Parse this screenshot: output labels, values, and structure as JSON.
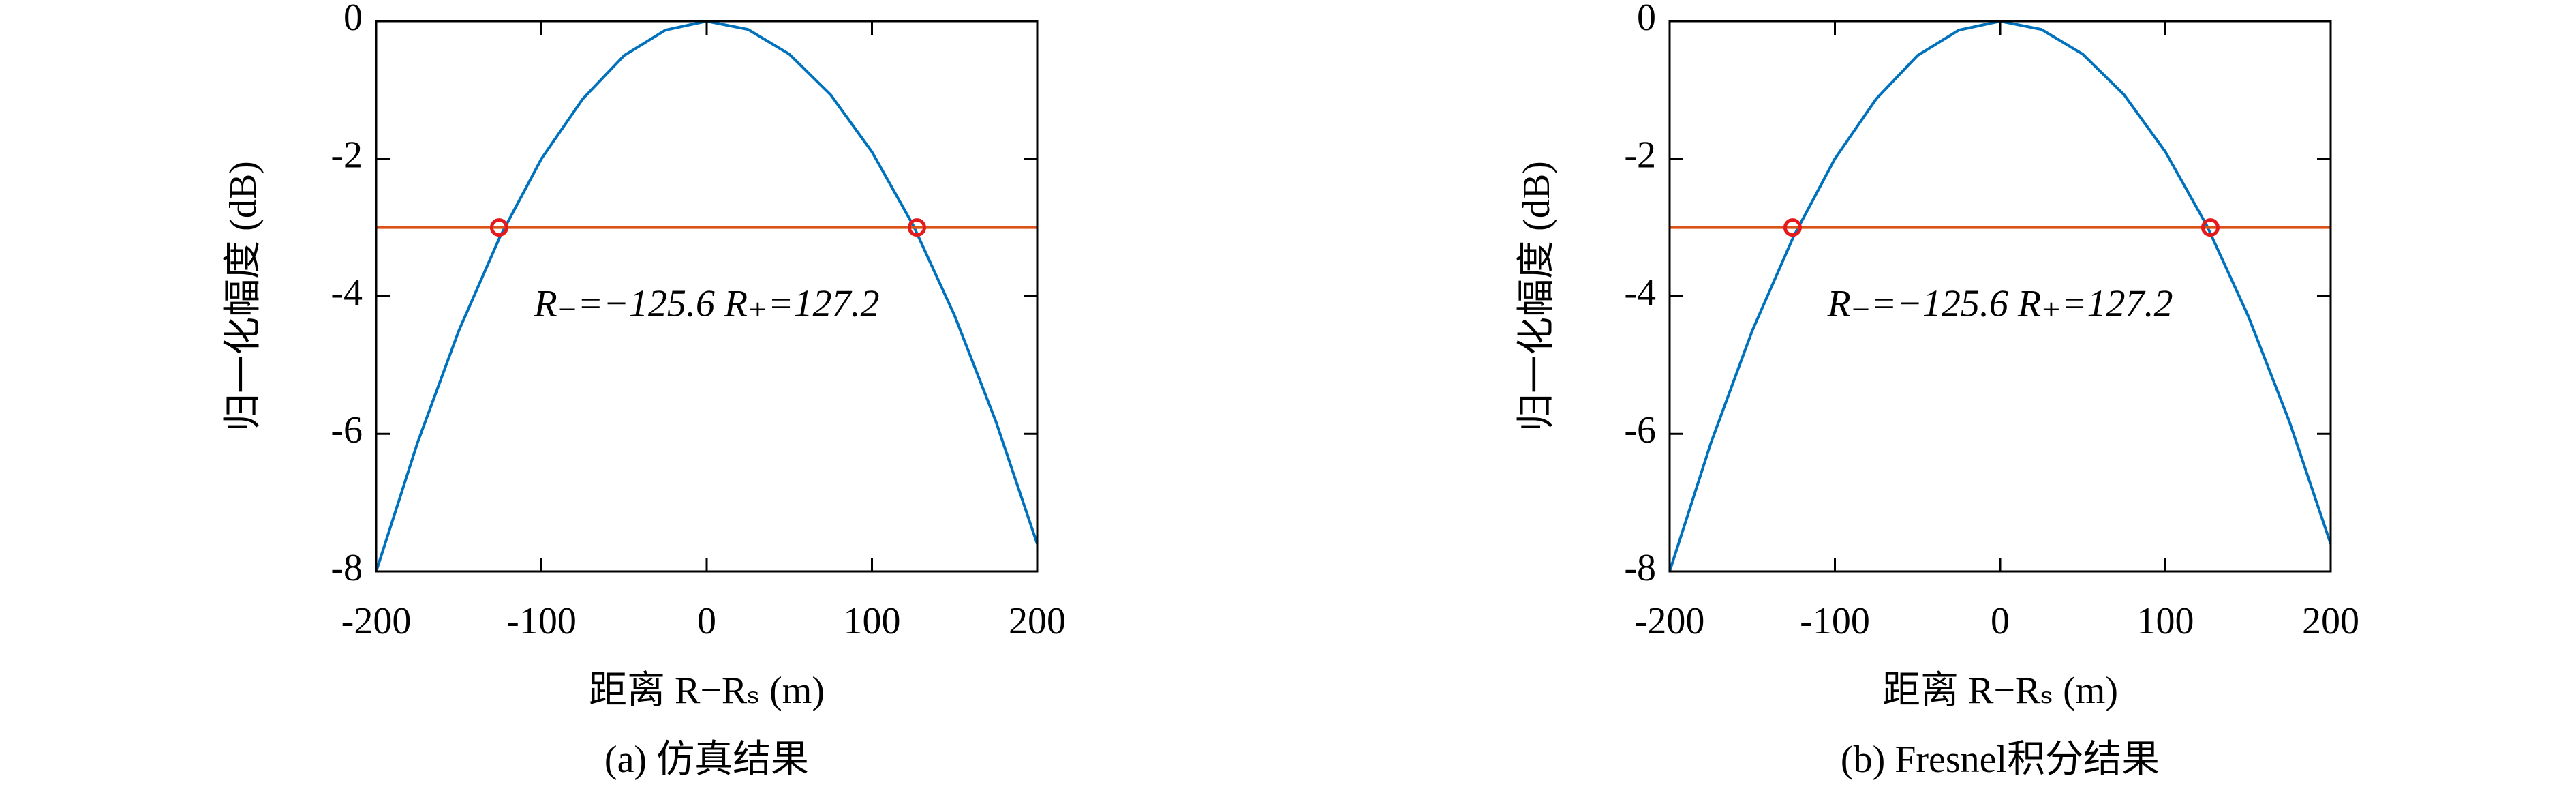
{
  "chart_data": [
    {
      "type": "line",
      "title": "(a) 仿真结果",
      "xlabel": "距离 R−Rₛ (m)",
      "ylabel": "归一化幅度 (dB)",
      "annotation": "R₋=−125.6 R₊=127.2",
      "xlim": [
        -200,
        200
      ],
      "ylim": [
        -8,
        0
      ],
      "xticks": [
        -200,
        -100,
        0,
        100,
        200
      ],
      "yticks": [
        -8,
        -6,
        -4,
        -2,
        0
      ],
      "series": [
        {
          "color": "#0072bd",
          "style": "line",
          "x": [
            -200,
            -175,
            -150,
            -125,
            -100,
            -75,
            -50,
            -25,
            0,
            25,
            50,
            75,
            100,
            125,
            150,
            175,
            200
          ],
          "values": [
            -8,
            -6.13,
            -4.5,
            -3.13,
            -2.0,
            -1.13,
            -0.5,
            -0.13,
            0,
            -0.12,
            -0.48,
            -1.07,
            -1.9,
            -2.97,
            -4.28,
            -5.82,
            -7.6
          ]
        },
        {
          "color": "#d95319",
          "style": "line",
          "x": [
            -200,
            200
          ],
          "values": [
            -3,
            -3
          ]
        },
        {
          "color": "#e41a1c",
          "style": "marker",
          "x": [
            -125.6,
            127.2
          ],
          "values": [
            -3,
            -3
          ]
        }
      ]
    },
    {
      "type": "line",
      "title": "(b) Fresnel积分结果",
      "xlabel": "距离 R−Rₛ (m)",
      "ylabel": "归一化幅度 (dB)",
      "annotation": "R₋=−125.6 R₊=127.2",
      "xlim": [
        -200,
        200
      ],
      "ylim": [
        -8,
        0
      ],
      "xticks": [
        -200,
        -100,
        0,
        100,
        200
      ],
      "yticks": [
        -8,
        -6,
        -4,
        -2,
        0
      ],
      "series": [
        {
          "color": "#0072bd",
          "style": "line",
          "x": [
            -200,
            -175,
            -150,
            -125,
            -100,
            -75,
            -50,
            -25,
            0,
            25,
            50,
            75,
            100,
            125,
            150,
            175,
            200
          ],
          "values": [
            -8,
            -6.13,
            -4.5,
            -3.13,
            -2.0,
            -1.13,
            -0.5,
            -0.13,
            0,
            -0.12,
            -0.48,
            -1.07,
            -1.9,
            -2.97,
            -4.28,
            -5.82,
            -7.6
          ]
        },
        {
          "color": "#d95319",
          "style": "line",
          "x": [
            -200,
            200
          ],
          "values": [
            -3,
            -3
          ]
        },
        {
          "color": "#e41a1c",
          "style": "marker",
          "x": [
            -125.6,
            127.2
          ],
          "values": [
            -3,
            -3
          ]
        }
      ]
    }
  ]
}
